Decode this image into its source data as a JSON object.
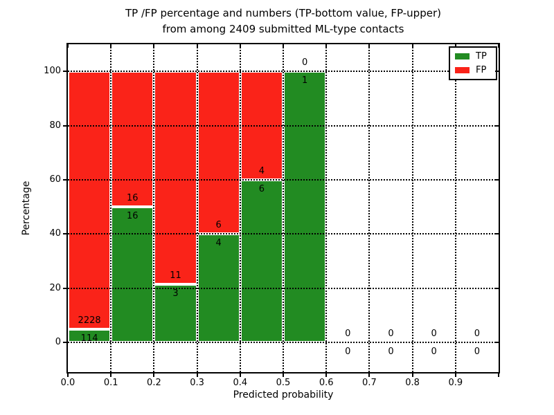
{
  "figure": {
    "title_line1": "TP /FP percentage and numbers (TP-bottom value, FP-upper)",
    "title_line2": "from among 2409 submitted ML-type contacts"
  },
  "axes": {
    "xlabel": "Predicted probability",
    "ylabel": "Percentage",
    "xtick_labels": [
      "0.0",
      "0.1",
      "0.2",
      "0.3",
      "0.4",
      "0.5",
      "0.6",
      "0.7",
      "0.8",
      "0.9"
    ],
    "xtick_values": [
      0.0,
      0.1,
      0.2,
      0.3,
      0.4,
      0.5,
      0.6,
      0.7,
      0.8,
      0.9
    ],
    "ytick_labels": [
      "0",
      "20",
      "40",
      "60",
      "80",
      "100"
    ],
    "ytick_values": [
      0,
      20,
      40,
      60,
      80,
      100
    ],
    "xlim": [
      0.0,
      1.0
    ],
    "ylim": [
      -11,
      110
    ],
    "grid": "dotted"
  },
  "legend": {
    "position": "upper-right",
    "items": [
      {
        "label": "TP",
        "color": "#228b22"
      },
      {
        "label": "FP",
        "color": "#fa2319"
      }
    ]
  },
  "colors": {
    "tp": "#228b22",
    "fp": "#fa2319",
    "axis": "#000000",
    "background": "#ffffff",
    "bar_edge": "#ffffff"
  },
  "chart_data": {
    "type": "bar",
    "stacked": true,
    "normalized_to_percent": true,
    "title": "TP /FP percentage and numbers (TP-bottom value, FP-upper) from among 2409 submitted ML-type contacts",
    "xlabel": "Predicted probability",
    "ylabel": "Percentage",
    "total_contacts": 2409,
    "bin_width": 0.1,
    "bin_starts": [
      0.0,
      0.1,
      0.2,
      0.3,
      0.4,
      0.5,
      0.6,
      0.7,
      0.8,
      0.9
    ],
    "series": [
      {
        "name": "TP",
        "color": "#228b22",
        "counts": [
          114,
          16,
          3,
          4,
          6,
          1,
          0,
          0,
          0,
          0
        ]
      },
      {
        "name": "FP",
        "color": "#fa2319",
        "counts": [
          2228,
          16,
          11,
          6,
          4,
          0,
          0,
          0,
          0,
          0
        ]
      }
    ],
    "tp_percent_per_bin": [
      4.87,
      50.0,
      21.43,
      40.0,
      60.0,
      100.0,
      null,
      null,
      null,
      null
    ],
    "ylim": [
      -11,
      110
    ],
    "xlim": [
      0.0,
      1.0
    ],
    "grid": true,
    "legend_position": "upper right"
  }
}
